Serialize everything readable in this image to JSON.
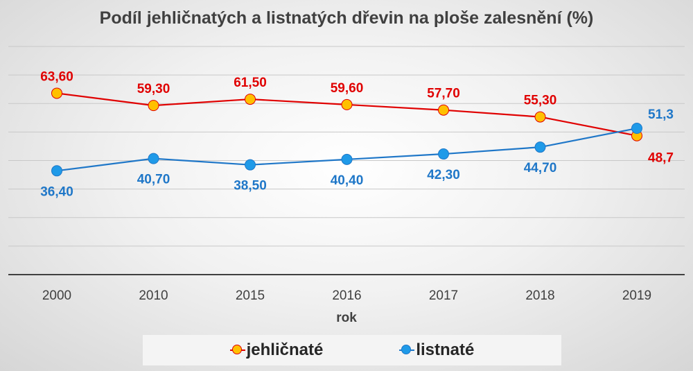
{
  "chart_data": {
    "type": "line",
    "title": "Podíl jehličnatých a listnatých dřevin na ploše zalesnění (%)",
    "xlabel": "rok",
    "ylabel": "",
    "categories": [
      "2000",
      "2010",
      "2015",
      "2016",
      "2017",
      "2018",
      "2019"
    ],
    "ylim": [
      0,
      80
    ],
    "grid": true,
    "legend_position": "bottom",
    "series": [
      {
        "name": "jehličnaté",
        "values": [
          63.6,
          59.3,
          61.5,
          59.6,
          57.7,
          55.3,
          48.7
        ],
        "labels": [
          "63,60",
          "59,30",
          "61,50",
          "59,60",
          "57,70",
          "55,30",
          "48,7"
        ],
        "line_color": "#e00000",
        "marker_color": "#ffc000",
        "label_color": "#e00000",
        "label_position": [
          "above",
          "above",
          "above",
          "above",
          "above",
          "above",
          "below-right"
        ]
      },
      {
        "name": "listnaté",
        "values": [
          36.4,
          40.7,
          38.5,
          40.4,
          42.3,
          44.7,
          51.3
        ],
        "labels": [
          "36,40",
          "40,70",
          "38,50",
          "40,40",
          "42,30",
          "44,70",
          "51,3"
        ],
        "line_color": "#1f77c8",
        "marker_color": "#1f9ae8",
        "label_color": "#1f77c8",
        "label_position": [
          "below",
          "below",
          "below",
          "below",
          "below",
          "below",
          "above-right"
        ]
      }
    ]
  },
  "legend": {
    "items": [
      {
        "label": "jehličnaté",
        "marker_color": "#ffc000",
        "line_color": "#e00000"
      },
      {
        "label": "listnaté",
        "marker_color": "#1f9ae8",
        "line_color": "#1f77c8"
      }
    ]
  }
}
